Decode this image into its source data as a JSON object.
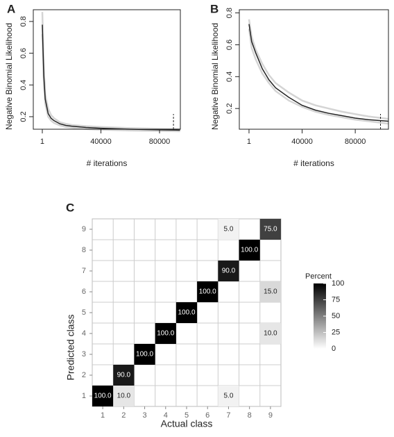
{
  "chart_data": [
    {
      "type": "line",
      "panel_label": "A",
      "ylabel": "Negative Binomial Likelihood",
      "xlabel": "# iterations",
      "x": [
        1,
        1000,
        2000,
        4000,
        6000,
        8000,
        12000,
        16000,
        20000,
        30000,
        40000,
        60000,
        80000,
        94000
      ],
      "series": [
        {
          "color": "#d4d4d4",
          "values": [
            0.86,
            0.52,
            0.34,
            0.25,
            0.21,
            0.19,
            0.165,
            0.155,
            0.148,
            0.14,
            0.135,
            0.128,
            0.124,
            0.122
          ]
        },
        {
          "color": "#d4d4d4",
          "values": [
            0.72,
            0.42,
            0.28,
            0.2,
            0.175,
            0.16,
            0.145,
            0.135,
            0.13,
            0.122,
            0.118,
            0.113,
            0.11,
            0.108
          ]
        },
        {
          "color": "#222222",
          "values": [
            0.78,
            0.46,
            0.31,
            0.22,
            0.19,
            0.175,
            0.155,
            0.145,
            0.14,
            0.132,
            0.127,
            0.121,
            0.117,
            0.115
          ]
        }
      ],
      "xlim": [
        -6150,
        94200
      ],
      "ylim": [
        0.121,
        0.874
      ],
      "xticks": [
        1,
        40000,
        80000
      ],
      "yticks": [
        0.2,
        0.4,
        0.6,
        0.8
      ],
      "vline": 89500
    },
    {
      "type": "line",
      "panel_label": "B",
      "ylabel": "Negative Binomial Likelihood",
      "xlabel": "# iterations",
      "x": [
        1,
        2000,
        5000,
        10000,
        15000,
        20000,
        30000,
        40000,
        50000,
        60000,
        70000,
        80000,
        90000,
        105000
      ],
      "series": [
        {
          "color": "#d4d4d4",
          "values": [
            0.76,
            0.65,
            0.57,
            0.48,
            0.41,
            0.36,
            0.3,
            0.25,
            0.22,
            0.2,
            0.18,
            0.165,
            0.15,
            0.135
          ]
        },
        {
          "color": "#d4d4d4",
          "values": [
            0.7,
            0.58,
            0.51,
            0.42,
            0.36,
            0.31,
            0.25,
            0.21,
            0.18,
            0.16,
            0.145,
            0.13,
            0.12,
            0.105
          ]
        },
        {
          "color": "#222222",
          "values": [
            0.73,
            0.62,
            0.55,
            0.45,
            0.38,
            0.33,
            0.27,
            0.22,
            0.19,
            0.17,
            0.155,
            0.14,
            0.13,
            0.12
          ]
        }
      ],
      "xlim": [
        -7300,
        105000
      ],
      "ylim": [
        0.07,
        0.82
      ],
      "xticks": [
        1,
        40000,
        80000
      ],
      "yticks": [
        0.2,
        0.4,
        0.6,
        0.8
      ],
      "vline": 99000
    },
    {
      "type": "heatmap",
      "panel_label": "C",
      "xlabel": "Actual class",
      "ylabel": "Predicted class",
      "xticks": [
        1,
        2,
        3,
        4,
        5,
        6,
        7,
        8,
        9
      ],
      "yticks": [
        1,
        2,
        3,
        4,
        5,
        6,
        7,
        8,
        9
      ],
      "cells": [
        {
          "x": 1,
          "y": 1,
          "value": 100,
          "value_label": "100.0"
        },
        {
          "x": 2,
          "y": 1,
          "value": 10,
          "value_label": "10.0"
        },
        {
          "x": 7,
          "y": 1,
          "value": 5,
          "value_label": "5.0"
        },
        {
          "x": 2,
          "y": 2,
          "value": 90,
          "value_label": "90.0"
        },
        {
          "x": 3,
          "y": 3,
          "value": 100,
          "value_label": "100.0"
        },
        {
          "x": 4,
          "y": 4,
          "value": 100,
          "value_label": "100.0"
        },
        {
          "x": 9,
          "y": 4,
          "value": 10,
          "value_label": "10.0"
        },
        {
          "x": 5,
          "y": 5,
          "value": 100,
          "value_label": "100.0"
        },
        {
          "x": 6,
          "y": 6,
          "value": 100,
          "value_label": "100.0"
        },
        {
          "x": 9,
          "y": 6,
          "value": 15,
          "value_label": "15.0"
        },
        {
          "x": 7,
          "y": 7,
          "value": 90,
          "value_label": "90.0"
        },
        {
          "x": 8,
          "y": 8,
          "value": 100,
          "value_label": "100.0"
        },
        {
          "x": 7,
          "y": 9,
          "value": 5,
          "value_label": "5.0"
        },
        {
          "x": 9,
          "y": 9,
          "value": 75,
          "value_label": "75.0"
        }
      ],
      "colorbar_title": "Percent",
      "clim": [
        0,
        100
      ],
      "cticks": [
        0,
        25,
        50,
        75,
        100
      ]
    }
  ]
}
